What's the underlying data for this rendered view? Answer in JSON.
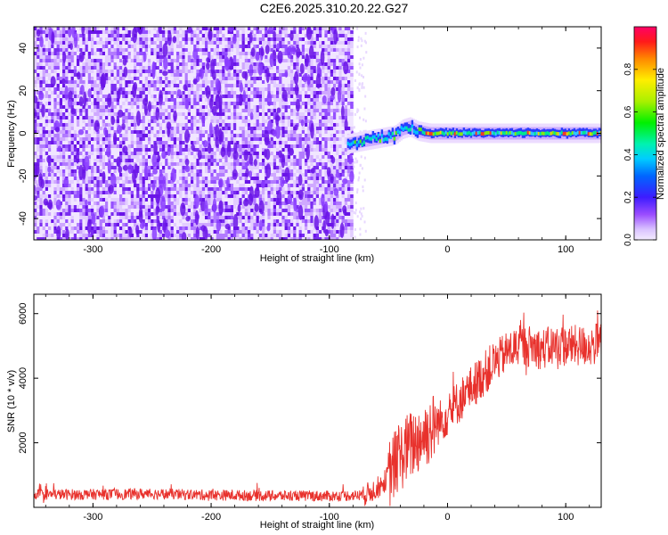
{
  "title": "C2E6.2025.310.20.22.G27",
  "chart_data": [
    {
      "type": "heatmap",
      "xlabel": "Height of straight line (km)",
      "ylabel": "Frequency (Hz)",
      "xlim": [
        -350,
        130
      ],
      "ylim": [
        -50,
        50
      ],
      "x_ticks": [
        -300,
        -200,
        -100,
        0,
        100
      ],
      "y_ticks": [
        -40,
        -20,
        0,
        20,
        40
      ],
      "noise_region_x": [
        -350,
        -80
      ],
      "signal_track": {
        "x": [
          -85,
          -75,
          -65,
          -55,
          -45,
          -38,
          -32,
          -25,
          -15,
          0,
          20,
          40,
          60,
          80,
          100,
          120,
          130
        ],
        "y": [
          -5,
          -4,
          -3,
          -2,
          -1,
          2,
          3,
          1,
          0,
          0,
          0,
          0,
          0,
          0,
          0,
          0,
          0
        ]
      },
      "colorbar": {
        "label": "Normalized spectral amplitude",
        "ticks": [
          0.0,
          0.2,
          0.4,
          0.6,
          0.8
        ],
        "range": [
          0,
          1
        ]
      },
      "grid": false
    },
    {
      "type": "line",
      "xlabel": "Height of straight line (km)",
      "ylabel": "SNR (10 * v/v)",
      "xlim": [
        -350,
        130
      ],
      "ylim": [
        0,
        6600
      ],
      "x_ticks": [
        -300,
        -200,
        -100,
        0,
        100
      ],
      "y_ticks": [
        2000,
        4000,
        6000
      ],
      "series": [
        {
          "color": "#e8312c",
          "envelope": {
            "x": [
              -350,
              -300,
              -250,
              -200,
              -150,
              -100,
              -70,
              -55,
              -45,
              -35,
              -25,
              -15,
              -5,
              0,
              10,
              20,
              30,
              40,
              50,
              60,
              70,
              80,
              90,
              100,
              110,
              120,
              130
            ],
            "y": [
              400,
              400,
              420,
              380,
              360,
              350,
              380,
              700,
              1300,
              1800,
              2100,
              2400,
              2700,
              2900,
              3300,
              3700,
              4100,
              4500,
              4800,
              5000,
              5000,
              4900,
              5000,
              5000,
              5000,
              5000,
              5100
            ]
          }
        }
      ],
      "grid": false
    }
  ]
}
